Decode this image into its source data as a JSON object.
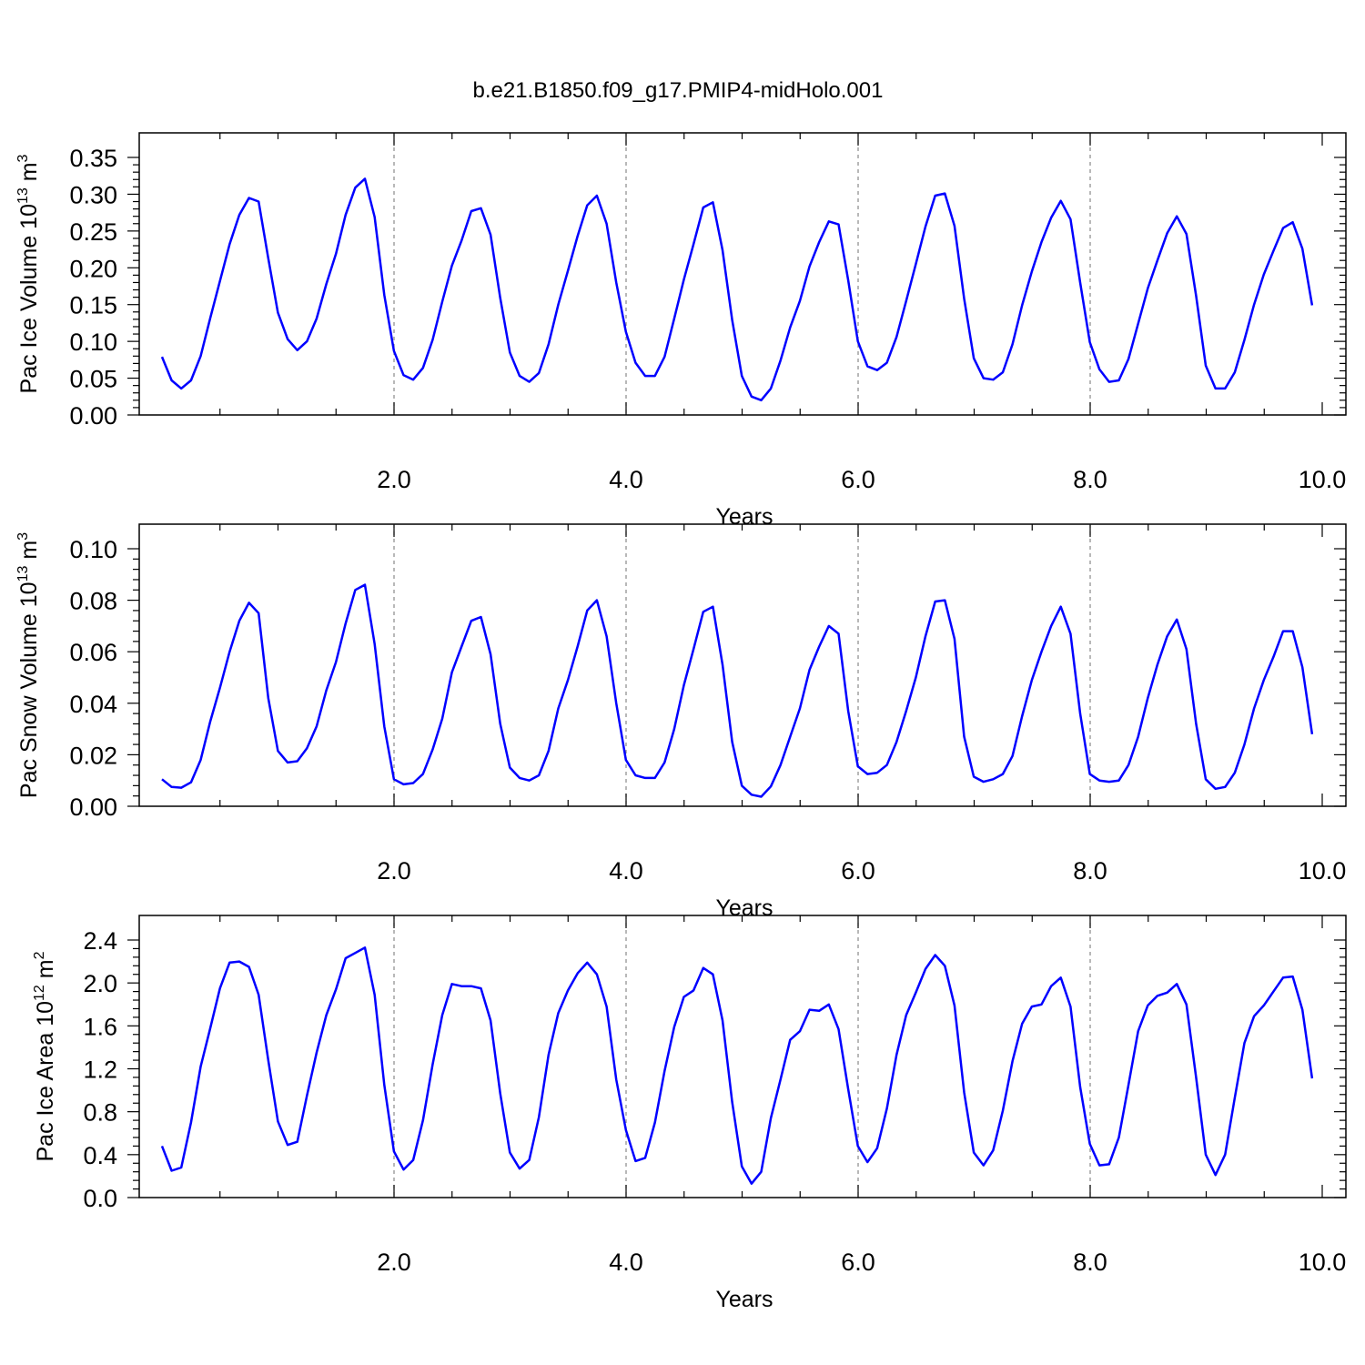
{
  "figure_title": "b.e21.B1850.f09_g17.PMIP4-midHolo.001",
  "colors": {
    "series": "#0000ff",
    "frame": "#000000",
    "grid": "#888888"
  },
  "chart_data": [
    {
      "type": "line",
      "title": "",
      "xlabel": "Years",
      "ylabel_parts": {
        "text": "Pac Ice Volume 10",
        "exp1": "13",
        "mid": " m",
        "exp2": "3"
      },
      "xlim": [
        0.0,
        10.0
      ],
      "ylim": [
        0.0,
        0.35
      ],
      "xticks": [
        2.0,
        4.0,
        6.0,
        8.0,
        10.0
      ],
      "xtick_labels": [
        "2.0",
        "4.0",
        "6.0",
        "8.0",
        "10.0"
      ],
      "yticks": [
        0.0,
        0.05,
        0.1,
        0.15,
        0.2,
        0.25,
        0.3,
        0.35
      ],
      "ytick_labels": [
        "0.00",
        "0.05",
        "0.10",
        "0.15",
        "0.20",
        "0.25",
        "0.30",
        "0.35"
      ],
      "grid": "vertical dashed at major x ticks",
      "x_start": 0.0,
      "x_step": 0.0833,
      "series": [
        {
          "values": [
            0.079,
            0.047,
            0.036,
            0.047,
            0.08,
            0.132,
            0.182,
            0.232,
            0.272,
            0.295,
            0.29,
            0.213,
            0.139,
            0.103,
            0.088,
            0.1,
            0.131,
            0.178,
            0.219,
            0.272,
            0.309,
            0.321,
            0.269,
            0.163,
            0.087,
            0.054,
            0.048,
            0.064,
            0.102,
            0.154,
            0.203,
            0.237,
            0.277,
            0.281,
            0.245,
            0.159,
            0.085,
            0.053,
            0.045,
            0.057,
            0.096,
            0.15,
            0.196,
            0.243,
            0.285,
            0.298,
            0.26,
            0.18,
            0.113,
            0.071,
            0.053,
            0.053,
            0.079,
            0.131,
            0.184,
            0.232,
            0.282,
            0.289,
            0.224,
            0.129,
            0.053,
            0.025,
            0.02,
            0.036,
            0.074,
            0.119,
            0.155,
            0.202,
            0.235,
            0.263,
            0.259,
            0.183,
            0.1,
            0.066,
            0.061,
            0.071,
            0.106,
            0.155,
            0.205,
            0.256,
            0.298,
            0.301,
            0.257,
            0.158,
            0.077,
            0.05,
            0.048,
            0.058,
            0.096,
            0.149,
            0.195,
            0.235,
            0.268,
            0.291,
            0.266,
            0.18,
            0.099,
            0.062,
            0.045,
            0.047,
            0.076,
            0.124,
            0.172,
            0.21,
            0.247,
            0.27,
            0.246,
            0.162,
            0.067,
            0.036,
            0.036,
            0.058,
            0.102,
            0.15,
            0.191,
            0.223,
            0.254,
            0.262,
            0.226,
            0.149
          ]
        }
      ]
    },
    {
      "type": "line",
      "title": "",
      "xlabel": "Years",
      "ylabel_parts": {
        "text": "Pac Snow Volume 10",
        "exp1": "13",
        "mid": " m",
        "exp2": "3"
      },
      "xlim": [
        0.0,
        10.0
      ],
      "ylim": [
        0.0,
        0.1
      ],
      "xticks": [
        2.0,
        4.0,
        6.0,
        8.0,
        10.0
      ],
      "xtick_labels": [
        "2.0",
        "4.0",
        "6.0",
        "8.0",
        "10.0"
      ],
      "yticks": [
        0.0,
        0.02,
        0.04,
        0.06,
        0.08,
        0.1
      ],
      "ytick_labels": [
        "0.00",
        "0.02",
        "0.04",
        "0.06",
        "0.08",
        "0.10"
      ],
      "grid": "vertical dashed at major x ticks",
      "x_start": 0.0,
      "x_step": 0.0833,
      "series": [
        {
          "values": [
            0.0105,
            0.0075,
            0.0072,
            0.0093,
            0.018,
            0.033,
            0.046,
            0.06,
            0.072,
            0.079,
            0.075,
            0.042,
            0.0215,
            0.017,
            0.0175,
            0.0225,
            0.031,
            0.045,
            0.056,
            0.071,
            0.084,
            0.086,
            0.063,
            0.031,
            0.0105,
            0.0085,
            0.009,
            0.0125,
            0.022,
            0.034,
            0.052,
            0.062,
            0.072,
            0.0735,
            0.059,
            0.032,
            0.015,
            0.011,
            0.01,
            0.012,
            0.0215,
            0.038,
            0.049,
            0.062,
            0.076,
            0.08,
            0.066,
            0.04,
            0.018,
            0.012,
            0.011,
            0.011,
            0.017,
            0.03,
            0.047,
            0.061,
            0.0755,
            0.0775,
            0.055,
            0.025,
            0.008,
            0.0045,
            0.0037,
            0.0077,
            0.016,
            0.027,
            0.038,
            0.053,
            0.062,
            0.07,
            0.067,
            0.037,
            0.0155,
            0.0125,
            0.013,
            0.016,
            0.025,
            0.037,
            0.05,
            0.066,
            0.0795,
            0.08,
            0.065,
            0.027,
            0.0115,
            0.0095,
            0.0105,
            0.0125,
            0.0195,
            0.035,
            0.049,
            0.06,
            0.07,
            0.0775,
            0.067,
            0.036,
            0.0125,
            0.01,
            0.0095,
            0.01,
            0.016,
            0.027,
            0.042,
            0.055,
            0.066,
            0.0725,
            0.061,
            0.032,
            0.0105,
            0.0068,
            0.0075,
            0.013,
            0.024,
            0.038,
            0.049,
            0.058,
            0.068,
            0.068,
            0.054,
            0.028
          ]
        }
      ]
    },
    {
      "type": "line",
      "title": "",
      "xlabel": "Years",
      "ylabel_parts": {
        "text": "Pac Ice Area 10",
        "exp1": "12",
        "mid": " m",
        "exp2": "2"
      },
      "xlim": [
        0.0,
        10.0
      ],
      "ylim": [
        0.0,
        2.4
      ],
      "xticks": [
        2.0,
        4.0,
        6.0,
        8.0,
        10.0
      ],
      "xtick_labels": [
        "2.0",
        "4.0",
        "6.0",
        "8.0",
        "10.0"
      ],
      "yticks": [
        0.0,
        0.4,
        0.8,
        1.2,
        1.6,
        2.0,
        2.4
      ],
      "ytick_labels": [
        "0.0",
        "0.4",
        "0.8",
        "1.2",
        "1.6",
        "2.0",
        "2.4"
      ],
      "grid": "vertical dashed at major x ticks",
      "x_start": 0.0,
      "x_step": 0.0833,
      "series": [
        {
          "values": [
            0.48,
            0.25,
            0.28,
            0.7,
            1.22,
            1.58,
            1.95,
            2.19,
            2.2,
            2.15,
            1.89,
            1.28,
            0.71,
            0.49,
            0.52,
            0.95,
            1.35,
            1.7,
            1.94,
            2.23,
            2.28,
            2.33,
            1.89,
            1.05,
            0.43,
            0.26,
            0.35,
            0.72,
            1.24,
            1.7,
            1.99,
            1.97,
            1.97,
            1.95,
            1.65,
            0.97,
            0.42,
            0.27,
            0.35,
            0.75,
            1.33,
            1.72,
            1.93,
            2.09,
            2.19,
            2.08,
            1.78,
            1.1,
            0.63,
            0.34,
            0.37,
            0.7,
            1.18,
            1.59,
            1.87,
            1.93,
            2.14,
            2.08,
            1.65,
            0.89,
            0.29,
            0.13,
            0.24,
            0.74,
            1.1,
            1.47,
            1.55,
            1.75,
            1.74,
            1.8,
            1.57,
            1.01,
            0.48,
            0.33,
            0.46,
            0.83,
            1.33,
            1.7,
            1.91,
            2.13,
            2.26,
            2.16,
            1.79,
            0.98,
            0.42,
            0.3,
            0.44,
            0.81,
            1.27,
            1.62,
            1.78,
            1.8,
            1.97,
            2.05,
            1.78,
            1.03,
            0.5,
            0.3,
            0.31,
            0.56,
            1.05,
            1.55,
            1.79,
            1.88,
            1.91,
            1.99,
            1.8,
            1.12,
            0.4,
            0.21,
            0.4,
            0.93,
            1.44,
            1.69,
            1.79,
            1.92,
            2.05,
            2.06,
            1.75,
            1.11
          ]
        }
      ]
    }
  ]
}
